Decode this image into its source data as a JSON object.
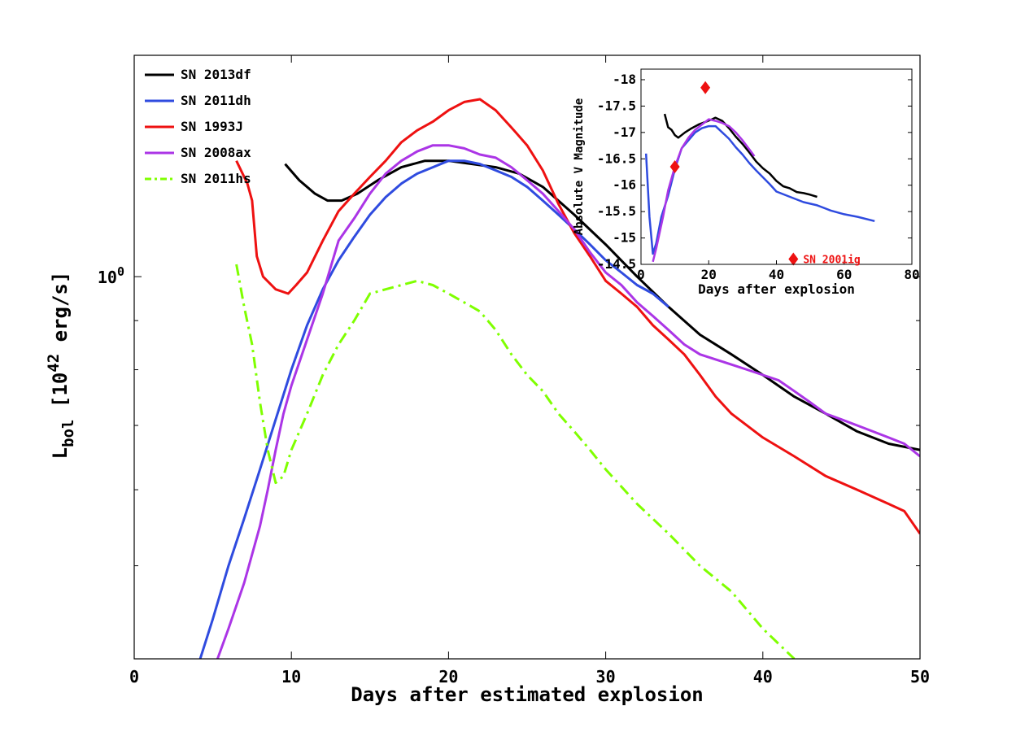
{
  "chart_data": [
    {
      "type": "line",
      "title": "",
      "xlabel": "Days after estimated explosion",
      "ylabel": {
        "base": "L",
        "sub": "bol",
        "rest1": " [10",
        "sup": "42",
        "rest2": " erg/s]"
      },
      "xlim": [
        0,
        50
      ],
      "ylim": [
        0.4,
        1.7
      ],
      "yscale": "log",
      "xticks": [
        0,
        10,
        20,
        30,
        40,
        50
      ],
      "xtick_labels": [
        "0",
        "10",
        "20",
        "30",
        "40",
        "50"
      ],
      "ytick_major": [
        {
          "value": 1.0,
          "label": "10",
          "sup": "0"
        }
      ],
      "ytick_minor": [
        0.5,
        0.6,
        0.7,
        0.8,
        0.9
      ],
      "legend_position": "top-left",
      "series": [
        {
          "name": "SN 2013df",
          "color": "#000000",
          "style": "solid",
          "x": [
            9.6,
            10.5,
            11.5,
            12.3,
            13.2,
            14.2,
            15.5,
            17,
            18.5,
            20,
            21.5,
            23,
            24.5,
            26,
            28,
            30,
            32,
            34,
            36,
            38,
            40,
            42,
            44,
            46,
            48,
            50
          ],
          "y": [
            1.31,
            1.26,
            1.22,
            1.2,
            1.2,
            1.22,
            1.26,
            1.3,
            1.32,
            1.32,
            1.31,
            1.3,
            1.28,
            1.24,
            1.16,
            1.08,
            1.0,
            0.93,
            0.87,
            0.83,
            0.79,
            0.75,
            0.72,
            0.69,
            0.67,
            0.66
          ]
        },
        {
          "name": "SN 2011dh",
          "color": "#2f4bdf",
          "style": "solid",
          "x": [
            4.2,
            5,
            6,
            7,
            8,
            9,
            10,
            11,
            12,
            13,
            14,
            15,
            16,
            17,
            18,
            19,
            20,
            21,
            22,
            23,
            24,
            25,
            26,
            27,
            28,
            29,
            30,
            31,
            32,
            33,
            34
          ],
          "y": [
            0.4,
            0.44,
            0.5,
            0.56,
            0.63,
            0.71,
            0.8,
            0.89,
            0.97,
            1.04,
            1.1,
            1.16,
            1.21,
            1.25,
            1.28,
            1.3,
            1.32,
            1.32,
            1.31,
            1.29,
            1.27,
            1.24,
            1.2,
            1.16,
            1.12,
            1.08,
            1.04,
            1.01,
            0.98,
            0.96,
            0.93
          ]
        },
        {
          "name": "SN 1993J",
          "color": "#ee1111",
          "style": "solid",
          "x": [
            6.5,
            7.2,
            7.5,
            7.8,
            8.2,
            9,
            9.8,
            10.3,
            11,
            12,
            13,
            14,
            15,
            16,
            17,
            18,
            19,
            20,
            21,
            22,
            23,
            24,
            25,
            26,
            27,
            28,
            29,
            30,
            31,
            32,
            33,
            34,
            35,
            36,
            37,
            38,
            40,
            42,
            44,
            46,
            48,
            49,
            50
          ],
          "y": [
            1.32,
            1.25,
            1.2,
            1.05,
            1.0,
            0.97,
            0.96,
            0.98,
            1.01,
            1.09,
            1.17,
            1.22,
            1.27,
            1.32,
            1.38,
            1.42,
            1.45,
            1.49,
            1.52,
            1.53,
            1.49,
            1.43,
            1.37,
            1.29,
            1.19,
            1.11,
            1.05,
            0.99,
            0.96,
            0.93,
            0.89,
            0.86,
            0.83,
            0.79,
            0.75,
            0.72,
            0.68,
            0.65,
            0.62,
            0.6,
            0.58,
            0.57,
            0.54
          ]
        },
        {
          "name": "SN 2008ax",
          "color": "#ab35e6",
          "style": "solid",
          "x": [
            5.3,
            6,
            7,
            8,
            8.5,
            9,
            9.5,
            10,
            11,
            12,
            13,
            14,
            15,
            16,
            17,
            18,
            19,
            20,
            21,
            22,
            23,
            24,
            25,
            26,
            27,
            28,
            29,
            30,
            31,
            32,
            33,
            34,
            35,
            36,
            37,
            38,
            39,
            40,
            41,
            42,
            43,
            44,
            45,
            46,
            47,
            48,
            49,
            50
          ],
          "y": [
            0.4,
            0.43,
            0.48,
            0.55,
            0.6,
            0.66,
            0.72,
            0.77,
            0.86,
            0.96,
            1.09,
            1.15,
            1.22,
            1.28,
            1.32,
            1.35,
            1.37,
            1.37,
            1.36,
            1.34,
            1.33,
            1.3,
            1.26,
            1.22,
            1.17,
            1.12,
            1.06,
            1.01,
            0.98,
            0.94,
            0.91,
            0.88,
            0.85,
            0.83,
            0.82,
            0.81,
            0.8,
            0.79,
            0.78,
            0.76,
            0.74,
            0.72,
            0.71,
            0.7,
            0.69,
            0.68,
            0.67,
            0.65
          ]
        },
        {
          "name": "SN 2011hs",
          "color": "#7fff00",
          "style": "dashdot",
          "x": [
            6.5,
            7,
            7.5,
            8,
            8.5,
            9,
            9.5,
            10,
            11,
            12,
            13,
            14,
            15,
            16,
            17,
            18,
            19,
            20,
            21,
            22,
            23,
            24,
            25,
            26,
            27,
            28,
            29,
            30,
            32,
            34,
            36,
            38,
            40,
            42
          ],
          "y": [
            1.03,
            0.93,
            0.85,
            0.74,
            0.66,
            0.61,
            0.62,
            0.66,
            0.72,
            0.79,
            0.85,
            0.9,
            0.96,
            0.97,
            0.98,
            0.99,
            0.98,
            0.96,
            0.94,
            0.92,
            0.88,
            0.83,
            0.79,
            0.76,
            0.72,
            0.69,
            0.66,
            0.63,
            0.58,
            0.54,
            0.5,
            0.47,
            0.43,
            0.4
          ]
        }
      ]
    },
    {
      "type": "line",
      "title": "",
      "xlabel": "Days after explosion",
      "ylabel": "Absolute V Magnitude",
      "xlim": [
        0,
        80
      ],
      "ylim": [
        -14.5,
        -18.2
      ],
      "y_inverted": true,
      "xticks": [
        0,
        20,
        40,
        60,
        80
      ],
      "xtick_labels": [
        "0",
        "20",
        "40",
        "60",
        "80"
      ],
      "yticks": [
        -18,
        -17.5,
        -17,
        -16.5,
        -16,
        -15.5,
        -15,
        -14.5
      ],
      "ytick_labels": [
        "-18",
        "-17.5",
        "-17",
        "-16.5",
        "-16",
        "-15.5",
        "-15",
        "-14.5"
      ],
      "series": [
        {
          "name": "SN 2013df",
          "color": "#000000",
          "style": "solid",
          "x": [
            7,
            8,
            9,
            10,
            11,
            13,
            15,
            17,
            19,
            21,
            22,
            24,
            26,
            28,
            30,
            32,
            34,
            36,
            38,
            40,
            42,
            44,
            46,
            48,
            50,
            52
          ],
          "y": [
            -17.35,
            -17.1,
            -17.05,
            -16.95,
            -16.9,
            -17.0,
            -17.08,
            -17.15,
            -17.2,
            -17.25,
            -17.28,
            -17.22,
            -17.08,
            -16.92,
            -16.78,
            -16.62,
            -16.45,
            -16.32,
            -16.22,
            -16.08,
            -15.98,
            -15.94,
            -15.87,
            -15.85,
            -15.82,
            -15.78
          ]
        },
        {
          "name": "SN 2011dh",
          "color": "#2f4bdf",
          "style": "solid",
          "x": [
            1.5,
            2.5,
            3.5,
            4.5,
            6,
            8,
            10,
            12,
            14,
            16,
            18,
            20,
            22,
            24,
            26,
            28,
            30,
            32,
            34,
            36,
            38,
            40,
            44,
            48,
            52,
            56,
            60,
            64,
            69
          ],
          "y": [
            -16.6,
            -15.4,
            -14.7,
            -14.9,
            -15.4,
            -15.8,
            -16.3,
            -16.7,
            -16.85,
            -17.0,
            -17.08,
            -17.12,
            -17.12,
            -17.0,
            -16.88,
            -16.72,
            -16.58,
            -16.42,
            -16.28,
            -16.15,
            -16.02,
            -15.88,
            -15.78,
            -15.68,
            -15.62,
            -15.52,
            -15.45,
            -15.4,
            -15.32
          ]
        },
        {
          "name": "SN 2008ax",
          "color": "#ab35e6",
          "style": "solid",
          "x": [
            3.5,
            4.5,
            5.5,
            6.5,
            8,
            10,
            12,
            14,
            16,
            18,
            20,
            22,
            24,
            26,
            28,
            30,
            32,
            33.5
          ],
          "y": [
            -14.55,
            -14.8,
            -15.1,
            -15.4,
            -15.9,
            -16.35,
            -16.7,
            -16.9,
            -17.05,
            -17.15,
            -17.25,
            -17.22,
            -17.18,
            -17.12,
            -17.0,
            -16.85,
            -16.68,
            -16.55
          ]
        },
        {
          "name": "SN 2001ig",
          "color": "#ee1111",
          "style": "marker-diamond",
          "x": [
            10,
            19,
            45
          ],
          "y": [
            -16.35,
            -17.85,
            -14.6
          ]
        }
      ],
      "annotation": "SN 2001ig"
    }
  ]
}
